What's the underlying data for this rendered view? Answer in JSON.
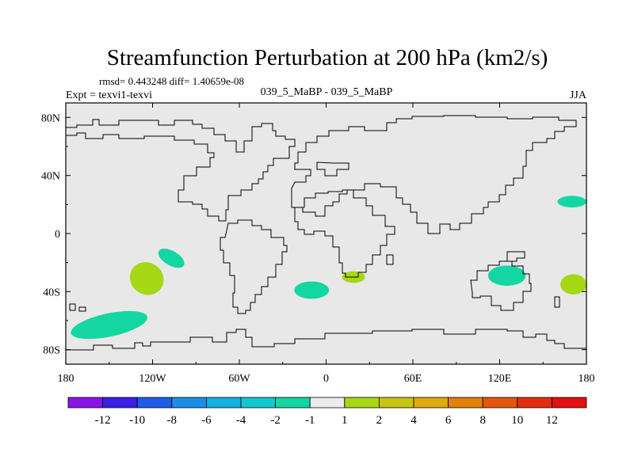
{
  "chart_data": {
    "type": "heatmap",
    "title": "Streamfunction Perturbation at 200 hPa (km2/s)",
    "stats_text": "rmsd= 0.443248 diff= 1.40659e-08",
    "left_label": "Expt = texvi1-texvi",
    "center_label": "039_5_MaBP - 039_5_MaBP",
    "right_label": "JJA",
    "x_ticks": [
      "180",
      "120W",
      "60W",
      "0",
      "60E",
      "120E",
      "180"
    ],
    "y_ticks": [
      "80N",
      "40N",
      "0",
      "40S",
      "80S"
    ],
    "x_range": [
      -180,
      180
    ],
    "y_range": [
      -90,
      90
    ],
    "colorbar": {
      "labels": [
        "-12",
        "-10",
        "-8",
        "-6",
        "-4",
        "-2",
        "-1",
        "1",
        "2",
        "4",
        "6",
        "8",
        "10",
        "12"
      ],
      "colors": [
        "#8a14e6",
        "#3a1ee6",
        "#1e5ee6",
        "#1a8ee6",
        "#14b0e0",
        "#10c8d2",
        "#14d6a2",
        "#ececec",
        "#a6d816",
        "#c8c414",
        "#e0aa10",
        "#e2800c",
        "#e2560e",
        "#e22e10",
        "#e21010"
      ]
    },
    "anomalies": [
      {
        "lon": -150,
        "lat": -63,
        "rlon": 27,
        "rlat": 8,
        "rot": -12,
        "level": "-2 to -1",
        "color": "#14d6a2"
      },
      {
        "lon": -107,
        "lat": -17,
        "rlon": 10,
        "rlat": 5,
        "rot": 30,
        "level": "-2 to -1",
        "color": "#14d6a2"
      },
      {
        "lon": -124,
        "lat": -31,
        "rlon": 12,
        "rlat": 11,
        "rot": 35,
        "level": "1 to 2",
        "color": "#a6d816"
      },
      {
        "lon": -10,
        "lat": -39,
        "rlon": 12,
        "rlat": 6,
        "rot": 0,
        "level": "-2 to -1",
        "color": "#14d6a2"
      },
      {
        "lon": 19,
        "lat": -30,
        "rlon": 8,
        "rlat": 4,
        "rot": 0,
        "level": "1 to 2",
        "color": "#a6d816"
      },
      {
        "lon": 125,
        "lat": -29,
        "rlon": 13,
        "rlat": 7,
        "rot": 0,
        "level": "-2 to -1",
        "color": "#14d6a2"
      },
      {
        "lon": 171,
        "lat": -35,
        "rlon": 9,
        "rlat": 7,
        "rot": 0,
        "level": "1 to 2",
        "color": "#a6d816"
      },
      {
        "lon": 170,
        "lat": 22,
        "rlon": 10,
        "rlat": 4,
        "rot": 0,
        "level": "-2 to -1",
        "color": "#14d6a2"
      }
    ]
  }
}
